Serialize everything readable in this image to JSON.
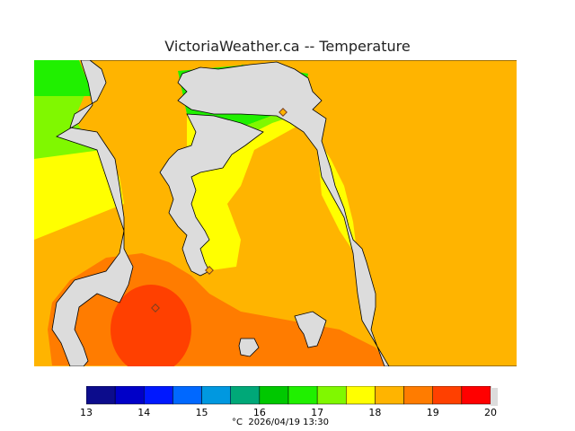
{
  "title": "VictoriaWeather.ca -- Temperature",
  "map": {
    "land_color": "#dcdcdc",
    "coast_color": "#000000",
    "station_color": "#7a4020"
  },
  "legend": {
    "min": 13,
    "max": 20,
    "colors": [
      "#0c0c8c",
      "#0000c8",
      "#0018ff",
      "#0068ff",
      "#0098e0",
      "#00a878",
      "#00c800",
      "#20f000",
      "#80f800",
      "#ffff00",
      "#ffb400",
      "#ff7c00",
      "#ff4000",
      "#ff0000"
    ],
    "tick_labels": [
      "13",
      "14",
      "15",
      "16",
      "17",
      "18",
      "19",
      "20"
    ]
  },
  "footer": {
    "unit": "°C",
    "datetime": "2026/04/19 13:30"
  }
}
